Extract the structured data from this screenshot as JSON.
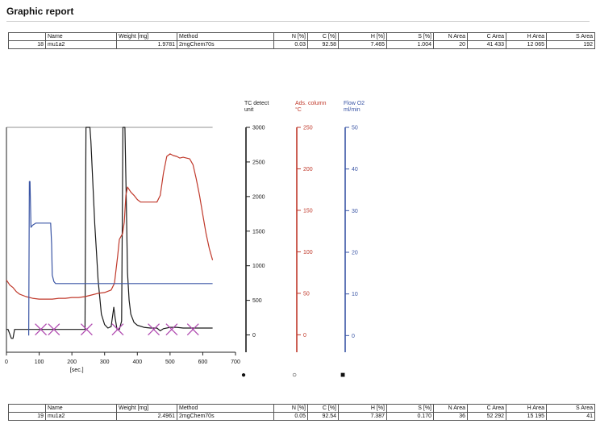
{
  "report": {
    "title": "Graphic report"
  },
  "table_top": {
    "headers": [
      "",
      "Name",
      "Weight [mg]",
      "Method",
      "N [%]",
      "C [%]",
      "H [%]",
      "S [%]",
      "N Area",
      "C Area",
      "H Area",
      "S Area"
    ],
    "row": [
      "18",
      "mu1a2",
      "1.9781",
      "2mgChem70s",
      "0.03",
      "92.58",
      "7.465",
      "1.004",
      "20",
      "41 433",
      "12 065",
      "192"
    ]
  },
  "table_bottom": {
    "headers": [
      "",
      "Name",
      "Weight [mg]",
      "Method",
      "N [%]",
      "C [%]",
      "H [%]",
      "S [%]",
      "N Area",
      "C Area",
      "H Area",
      "S Area"
    ],
    "row": [
      "19",
      "mu1a2",
      "2.4961",
      "2mgChem70s",
      "0.05",
      "92.54",
      "7.387",
      "0.170",
      "36",
      "52 292",
      "15 195",
      "41"
    ]
  },
  "chart_data": {
    "type": "line",
    "x_unit_label": "[sec.]",
    "xlim": [
      0,
      700
    ],
    "x_ticks": [
      0,
      100,
      200,
      300,
      400,
      500,
      600,
      700
    ],
    "colors": {
      "tc": "#1a1a1a",
      "ads": "#c0392b",
      "flow": "#3a55a5",
      "marker": "#b04ab0"
    },
    "axes": [
      {
        "name": "TC detect unit",
        "title_lines": [
          "TC detect",
          "unit"
        ],
        "color": "#1a1a1a",
        "ylim": [
          -250,
          3000
        ],
        "ticks": [
          0,
          500,
          1000,
          1500,
          2000,
          2500,
          3000
        ],
        "bottom_marker": "●"
      },
      {
        "name": "Ads. column °C",
        "title_lines": [
          "Ads. column",
          "°C"
        ],
        "color": "#c0392b",
        "ylim": [
          -21,
          250
        ],
        "ticks": [
          0,
          50,
          100,
          150,
          200,
          250
        ],
        "bottom_marker": "○"
      },
      {
        "name": "Flow O2 ml/min",
        "title_lines": [
          "Flow O2",
          "ml/min"
        ],
        "color": "#3a55a5",
        "ylim": [
          -4,
          50
        ],
        "ticks": [
          0,
          10,
          20,
          30,
          40,
          50
        ],
        "bottom_marker": "■"
      }
    ],
    "series": [
      {
        "name": "TC detect",
        "axis": 0,
        "color": "#1a1a1a",
        "x": [
          0,
          5,
          15,
          20,
          25,
          30,
          40,
          60,
          80,
          100,
          120,
          140,
          160,
          180,
          200,
          220,
          235,
          240,
          243,
          246,
          250,
          255,
          258,
          262,
          266,
          270,
          275,
          280,
          290,
          300,
          310,
          320,
          328,
          332,
          338,
          345,
          352,
          356,
          358,
          362,
          366,
          370,
          375,
          380,
          390,
          400,
          420,
          440,
          460,
          470,
          480,
          500,
          520,
          540,
          560,
          580,
          600,
          620,
          630
        ],
        "y": [
          80,
          80,
          -50,
          -50,
          80,
          80,
          80,
          80,
          80,
          80,
          80,
          80,
          80,
          80,
          80,
          80,
          80,
          80,
          3000,
          3000,
          3000,
          3000,
          2800,
          2400,
          2000,
          1600,
          1200,
          800,
          300,
          150,
          100,
          120,
          400,
          250,
          80,
          80,
          200,
          3000,
          3000,
          3000,
          2000,
          900,
          500,
          300,
          180,
          140,
          110,
          100,
          100,
          60,
          90,
          110,
          110,
          100,
          100,
          100,
          100,
          100,
          100
        ]
      },
      {
        "name": "Ads. column",
        "axis": 1,
        "color": "#c0392b",
        "x": [
          0,
          10,
          20,
          30,
          40,
          60,
          80,
          100,
          120,
          140,
          160,
          180,
          200,
          220,
          240,
          260,
          280,
          300,
          320,
          330,
          340,
          345,
          355,
          360,
          365,
          370,
          380,
          390,
          400,
          410,
          420,
          440,
          460,
          470,
          480,
          490,
          500,
          510,
          520,
          530,
          540,
          550,
          560,
          570,
          580,
          590,
          600,
          610,
          620,
          630
        ],
        "y": [
          66,
          60,
          57,
          52,
          49,
          46,
          44,
          43,
          43,
          43,
          44,
          44,
          45,
          45,
          46,
          48,
          50,
          51,
          54,
          62,
          95,
          115,
          122,
          136,
          168,
          178,
          172,
          168,
          163,
          160,
          160,
          160,
          160,
          168,
          195,
          215,
          218,
          216,
          215,
          213,
          214,
          213,
          212,
          205,
          188,
          168,
          145,
          122,
          104,
          90
        ]
      },
      {
        "name": "Flow O2",
        "axis": 2,
        "color": "#3a55a5",
        "x": [
          68,
          70,
          72,
          75,
          80,
          90,
          100,
          110,
          120,
          130,
          135,
          138,
          140,
          145,
          150,
          160,
          180,
          200,
          250,
          300,
          350,
          400,
          450,
          500,
          550,
          600,
          630
        ],
        "y": [
          0,
          37,
          37,
          26,
          26.5,
          27,
          27,
          27,
          27,
          27,
          27,
          22,
          14.5,
          13,
          12.5,
          12.5,
          12.5,
          12.5,
          12.5,
          12.5,
          12.5,
          12.5,
          12.5,
          12.5,
          12.5,
          12.5,
          12.5
        ]
      }
    ],
    "markers": {
      "symbol": "x",
      "color": "#b04ab0",
      "x": [
        105,
        145,
        245,
        340,
        450,
        505,
        570
      ]
    }
  }
}
